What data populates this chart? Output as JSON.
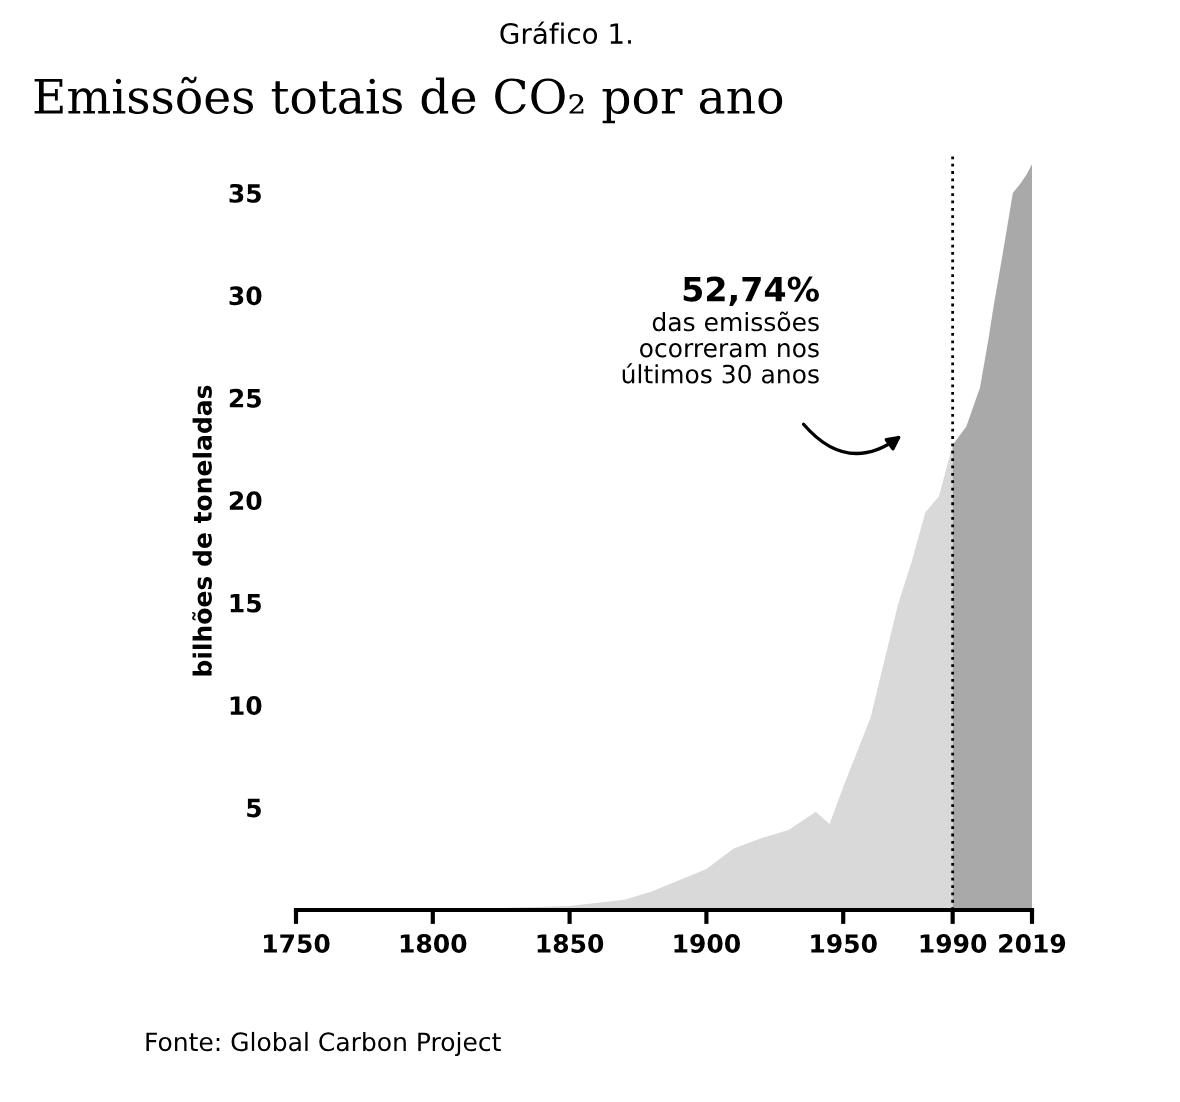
{
  "chart_data": {
    "type": "area",
    "title": "Emissões totais de CO₂ por ano",
    "ylabel": "bilhões de toneladas",
    "annotations": [
      "Gráfico 1.",
      "52,74%",
      "das emissões\nocorreram nos\núltimos 30 anos",
      "Fonte: Global Carbon Project"
    ],
    "series": [
      {
        "color": "#d9d9d9",
        "x": [
          1750,
          1800,
          1850,
          1870,
          1880,
          1900,
          1910,
          1920,
          1930,
          1940,
          1945,
          1950,
          1960,
          1970,
          1975,
          1980,
          1985,
          1990
        ],
        "values": [
          0,
          0,
          0.2,
          0.5,
          0.9,
          2.0,
          3.0,
          3.5,
          3.9,
          4.8,
          4.2,
          6.0,
          9.4,
          14.9,
          17.0,
          19.4,
          20.2,
          22.7
        ]
      },
      {
        "color": "#a9a9a9",
        "x": [
          1990,
          1995,
          2000,
          2003,
          2005,
          2008,
          2010,
          2012,
          2015,
          2017,
          2019
        ],
        "values": [
          22.7,
          23.6,
          25.5,
          27.8,
          29.5,
          31.8,
          33.4,
          35.0,
          35.5,
          35.9,
          36.4
        ]
      }
    ],
    "xlim": [
      1750,
      2019
    ],
    "xticks": [
      1750,
      1800,
      1850,
      1900,
      1950,
      1990,
      2019
    ],
    "ylim": [
      0,
      37
    ],
    "yticks": [
      5,
      10,
      15,
      20,
      25,
      30,
      35
    ],
    "ref_lines": [
      {
        "axis": "x",
        "value": 1990,
        "color": "#000000",
        "line_style": "dotted"
      }
    ],
    "grid": false,
    "legend": false
  }
}
